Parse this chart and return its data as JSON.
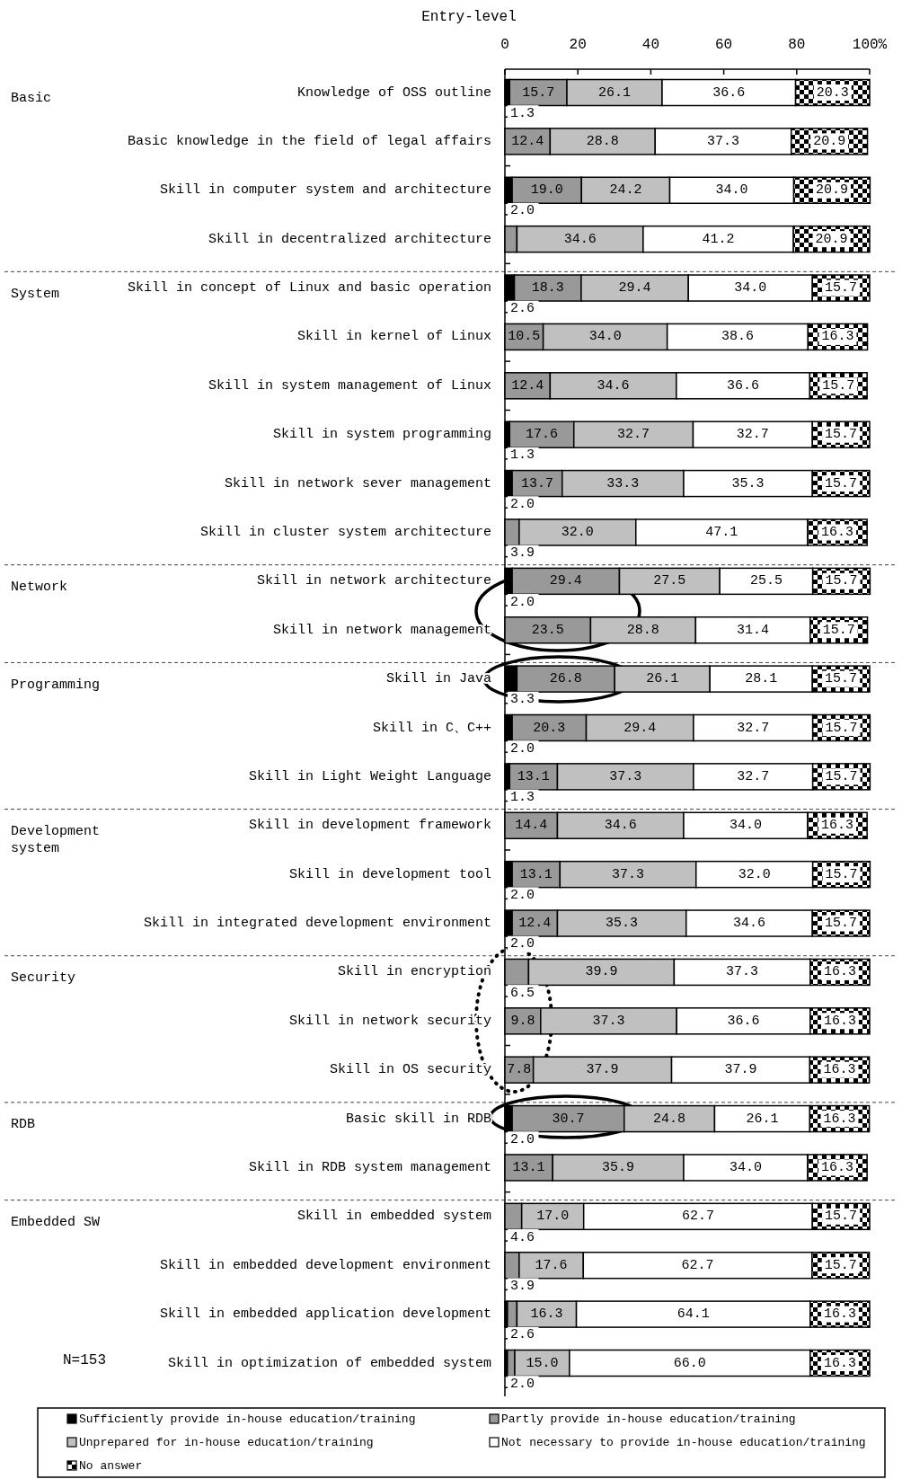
{
  "chart_data": {
    "type": "bar",
    "orientation": "horizontal",
    "stacked": true,
    "title": "Entry-level",
    "categories": [
      "Knowledge of OSS outline",
      "Basic knowledge in the field of legal affairs",
      "Skill in computer system and architecture",
      "Skill in decentralized architecture",
      "Skill in concept of Linux and basic operation",
      "Skill in kernel of Linux",
      "Skill in system management of Linux",
      "Skill in system programming",
      "Skill in network sever management",
      "Skill in cluster system architecture",
      "Skill in network architecture",
      "Skill in network management",
      "Skill in Java",
      "Skill in C、C++",
      "Skill in Light Weight Language",
      "Skill in development framework",
      "Skill in development tool",
      "Skill in integrated development environment",
      "Skill in encryption",
      "Skill in network security",
      "Skill in OS security",
      "Basic skill in RDB",
      "Skill in RDB system management",
      "Skill in embedded system",
      "Skill in embedded development environment",
      "Skill in embedded application development",
      "Skill in optimization of embedded system"
    ],
    "series": [
      {
        "name": "Sufficiently provide in-house education/training",
        "color": "#000000",
        "values": [
          1.3,
          0,
          2.0,
          0,
          2.6,
          0,
          0,
          1.3,
          2.0,
          0,
          2.0,
          0,
          3.3,
          2.0,
          1.3,
          0,
          2.0,
          2.0,
          0,
          0,
          0,
          2.0,
          0,
          0,
          0,
          0.7,
          0.7
        ],
        "value_labels": [
          "1.3",
          null,
          "2.0",
          null,
          "2.6",
          null,
          null,
          "1.3",
          "2.0",
          null,
          "2.0",
          null,
          "3.3",
          "2.0",
          "1.3",
          null,
          "2.0",
          "2.0",
          null,
          null,
          null,
          "2.0",
          null,
          null,
          null,
          null,
          null
        ]
      },
      {
        "name": "Partly provide in-house education/training",
        "color": "#999999",
        "values": [
          15.7,
          12.4,
          19.0,
          3.3,
          18.3,
          10.5,
          12.4,
          17.6,
          13.7,
          3.9,
          29.4,
          23.5,
          26.8,
          20.3,
          13.1,
          14.4,
          13.1,
          12.4,
          6.5,
          9.8,
          7.8,
          30.7,
          13.1,
          4.6,
          3.9,
          2.6,
          2.0
        ],
        "value_labels": [
          "15.7",
          "12.4",
          "19.0",
          null,
          "18.3",
          "10.5",
          "12.4",
          "17.6",
          "13.7",
          "3.9",
          "29.4",
          "23.5",
          "26.8",
          "20.3",
          "13.1",
          "14.4",
          "13.1",
          "12.4",
          "6.5",
          "9.8",
          "7.8",
          "30.7",
          "13.1",
          "4.6",
          "3.9",
          "2.6",
          "2.0"
        ]
      },
      {
        "name": "Unprepared for in-house education/training",
        "color": "#c0c0c0",
        "values": [
          26.1,
          28.8,
          24.2,
          34.6,
          29.4,
          34.0,
          34.6,
          32.7,
          33.3,
          32.0,
          27.5,
          28.8,
          26.1,
          29.4,
          37.3,
          34.6,
          37.3,
          35.3,
          39.9,
          37.3,
          37.9,
          24.8,
          35.9,
          17.0,
          17.6,
          16.3,
          15.0
        ],
        "value_labels": [
          "26.1",
          "28.8",
          "24.2",
          "34.6",
          "29.4",
          "34.0",
          "34.6",
          "32.7",
          "33.3",
          "32.0",
          "27.5",
          "28.8",
          "26.1",
          "29.4",
          "37.3",
          "34.6",
          "37.3",
          "35.3",
          "39.9",
          "37.3",
          "37.9",
          "24.8",
          "35.9",
          "17.0",
          "17.6",
          "16.3",
          "15.0"
        ]
      },
      {
        "name": "Not necessary to provide in-house education/training",
        "color": "#ffffff",
        "values": [
          36.6,
          37.3,
          34.0,
          41.2,
          34.0,
          38.6,
          36.6,
          32.7,
          35.3,
          47.1,
          25.5,
          31.4,
          28.1,
          32.7,
          32.7,
          34.0,
          32.0,
          34.6,
          37.3,
          36.6,
          37.9,
          26.1,
          34.0,
          62.7,
          62.7,
          64.1,
          66.0
        ],
        "value_labels": [
          "36.6",
          "37.3",
          "34.0",
          "41.2",
          "34.0",
          "38.6",
          "36.6",
          "32.7",
          "35.3",
          "47.1",
          "25.5",
          "31.4",
          "28.1",
          "32.7",
          "32.7",
          "34.0",
          "32.0",
          "34.6",
          "37.3",
          "36.6",
          "37.9",
          "26.1",
          "34.0",
          "62.7",
          "62.7",
          "64.1",
          "66.0"
        ]
      },
      {
        "name": "No answer",
        "color": "#000000",
        "values": [
          20.3,
          20.9,
          20.9,
          20.9,
          15.7,
          16.3,
          15.7,
          15.7,
          15.7,
          16.3,
          15.7,
          15.7,
          15.7,
          15.7,
          15.7,
          16.3,
          15.7,
          15.7,
          16.3,
          16.3,
          16.3,
          16.3,
          16.3,
          15.7,
          15.7,
          16.3,
          16.3
        ],
        "value_labels": [
          "20.3",
          "20.9",
          "20.9",
          "20.9",
          "15.7",
          "16.3",
          "15.7",
          "15.7",
          "15.7",
          "16.3",
          "15.7",
          "15.7",
          "15.7",
          "15.7",
          "15.7",
          "16.3",
          "15.7",
          "15.7",
          "16.3",
          "16.3",
          "16.3",
          "16.3",
          "16.3",
          "15.7",
          "15.7",
          "16.3",
          "16.3"
        ]
      }
    ],
    "xlim": [
      0,
      100
    ],
    "xticks": [
      0,
      20,
      40,
      60,
      80,
      {
        "value": 100,
        "label": "100%"
      }
    ],
    "legend": "bottom",
    "annotations": [
      "Basic",
      "System",
      "Network",
      "Programming",
      "Development system",
      "Security",
      "RDB",
      "Embedded SW",
      "N=153"
    ]
  }
}
